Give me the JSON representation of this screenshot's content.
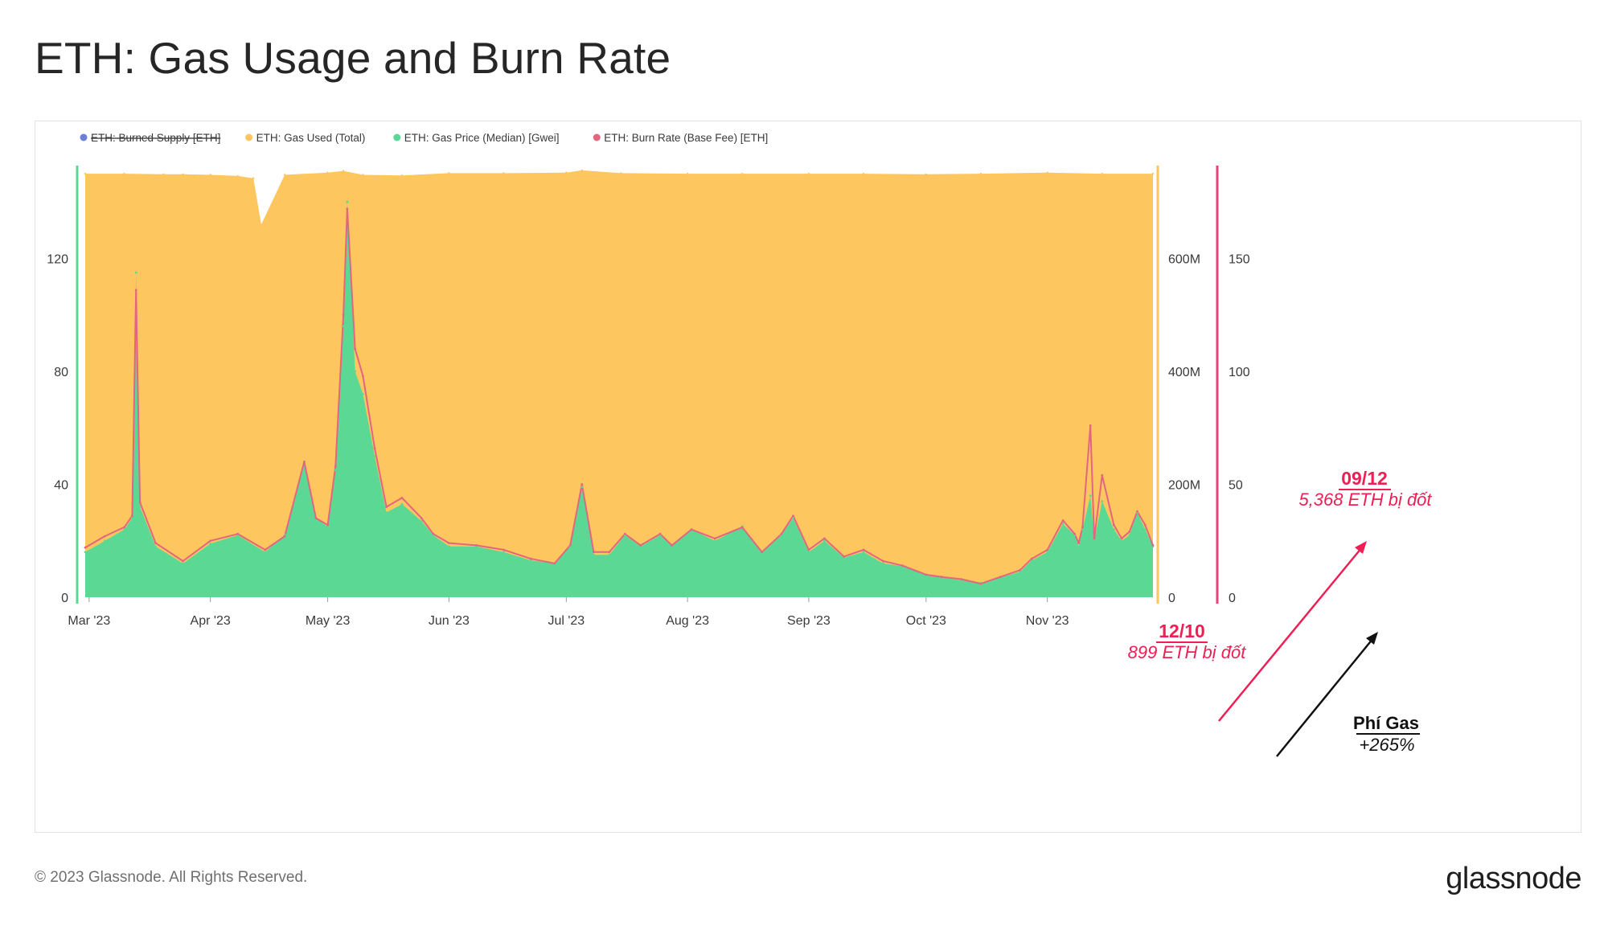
{
  "title": "ETH: Gas Usage and Burn Rate",
  "footer": {
    "copyright": "© 2023 Glassnode. All Rights Reserved.",
    "logo": "glassnode"
  },
  "colors": {
    "gas_used": "#FEC65E",
    "gas_price": "#5BD894",
    "burn_rate": "#E36680",
    "burned_supply": "#6B7FD7",
    "annotation_red": "#EF1F55",
    "annotation_black": "#111111",
    "left_axis_line": "#5BD894",
    "right_axis_line_1": "#FEC65E",
    "right_axis_line_2": "#E8437A"
  },
  "chart_data": {
    "type": "area",
    "legend": [
      {
        "name": "ETH: Burned Supply [ETH]",
        "color": "#6B7FD7",
        "hidden": true
      },
      {
        "name": "ETH: Gas Used (Total)",
        "color": "#FEC65E",
        "hidden": false
      },
      {
        "name": "ETH: Gas Price (Median) [Gwei]",
        "color": "#5BD894",
        "hidden": false
      },
      {
        "name": "ETH: Burn Rate (Base Fee) [ETH]",
        "color": "#E36680",
        "hidden": false
      }
    ],
    "legend_position": "top-left",
    "grid": false,
    "x_range": [
      "2023-02-28",
      "2023-11-28"
    ],
    "x_ticks": [
      {
        "date": "2023-03-01",
        "label": "Mar '23"
      },
      {
        "date": "2023-04-01",
        "label": "Apr '23"
      },
      {
        "date": "2023-05-01",
        "label": "May '23"
      },
      {
        "date": "2023-06-01",
        "label": "Jun '23"
      },
      {
        "date": "2023-07-01",
        "label": "Jul '23"
      },
      {
        "date": "2023-08-01",
        "label": "Aug '23"
      },
      {
        "date": "2023-09-01",
        "label": "Sep '23"
      },
      {
        "date": "2023-10-01",
        "label": "Oct '23"
      },
      {
        "date": "2023-11-01",
        "label": "Nov '23"
      }
    ],
    "axes": {
      "left": {
        "series": "ETH: Gas Price (Median) [Gwei]",
        "range": [
          0,
          160
        ],
        "ticks": [
          {
            "value": 0,
            "label": "0"
          },
          {
            "value": 40,
            "label": "40"
          },
          {
            "value": 80,
            "label": "80"
          },
          {
            "value": 120,
            "label": "120"
          }
        ]
      },
      "right1": {
        "series": "ETH: Gas Used (Total)",
        "range": [
          0,
          800000000
        ],
        "ticks": [
          {
            "value": 0,
            "label": "0"
          },
          {
            "value": 200000000,
            "label": "200M"
          },
          {
            "value": 400000000,
            "label": "400M"
          },
          {
            "value": 600000000,
            "label": "600M"
          }
        ]
      },
      "right2": {
        "series": "ETH: Burn Rate (Base Fee) [ETH]",
        "range": [
          0,
          200
        ],
        "ticks": [
          {
            "value": 0,
            "label": "0"
          },
          {
            "value": 50,
            "label": "50"
          },
          {
            "value": 100,
            "label": "100"
          },
          {
            "value": 150,
            "label": "150"
          }
        ]
      }
    },
    "series": [
      {
        "name": "ETH: Gas Used (Total)",
        "axis": "right1",
        "x": [
          "2023-02-28",
          "2023-03-10",
          "2023-03-20",
          "2023-03-25",
          "2023-04-01",
          "2023-04-08",
          "2023-04-12",
          "2023-04-14",
          "2023-04-20",
          "2023-05-01",
          "2023-05-05",
          "2023-05-10",
          "2023-05-20",
          "2023-06-01",
          "2023-06-15",
          "2023-07-01",
          "2023-07-05",
          "2023-07-15",
          "2023-08-01",
          "2023-08-15",
          "2023-09-01",
          "2023-09-15",
          "2023-10-01",
          "2023-10-15",
          "2023-11-01",
          "2023-11-15",
          "2023-11-28"
        ],
        "values": [
          750000000,
          750000000,
          749000000,
          749000000,
          748000000,
          746000000,
          742000000,
          660000000,
          748000000,
          752000000,
          755000000,
          748000000,
          747000000,
          751000000,
          751000000,
          752000000,
          756000000,
          751000000,
          750000000,
          750000000,
          750000000,
          750000000,
          749000000,
          750000000,
          752000000,
          750000000,
          750000000
        ]
      },
      {
        "name": "ETH: Gas Price (Median) [Gwei]",
        "axis": "left",
        "x": [
          "2023-02-28",
          "2023-03-05",
          "2023-03-10",
          "2023-03-12",
          "2023-03-13",
          "2023-03-14",
          "2023-03-18",
          "2023-03-25",
          "2023-04-01",
          "2023-04-08",
          "2023-04-15",
          "2023-04-20",
          "2023-04-25",
          "2023-04-28",
          "2023-05-01",
          "2023-05-03",
          "2023-05-05",
          "2023-05-06",
          "2023-05-08",
          "2023-05-10",
          "2023-05-13",
          "2023-05-16",
          "2023-05-20",
          "2023-05-25",
          "2023-05-28",
          "2023-06-01",
          "2023-06-08",
          "2023-06-15",
          "2023-06-22",
          "2023-06-28",
          "2023-07-02",
          "2023-07-05",
          "2023-07-08",
          "2023-07-12",
          "2023-07-16",
          "2023-07-20",
          "2023-07-25",
          "2023-07-28",
          "2023-08-02",
          "2023-08-08",
          "2023-08-15",
          "2023-08-20",
          "2023-08-25",
          "2023-08-28",
          "2023-09-01",
          "2023-09-05",
          "2023-09-10",
          "2023-09-15",
          "2023-09-20",
          "2023-09-25",
          "2023-10-01",
          "2023-10-05",
          "2023-10-10",
          "2023-10-15",
          "2023-10-20",
          "2023-10-25",
          "2023-10-28",
          "2023-11-01",
          "2023-11-05",
          "2023-11-08",
          "2023-11-09",
          "2023-11-10",
          "2023-11-12",
          "2023-11-13",
          "2023-11-15",
          "2023-11-18",
          "2023-11-20",
          "2023-11-22",
          "2023-11-24",
          "2023-11-26",
          "2023-11-28"
        ],
        "values": [
          16,
          20,
          24,
          28,
          115,
          32,
          18,
          12,
          19,
          22,
          16,
          22,
          48,
          28,
          25,
          45,
          96,
          140,
          80,
          72,
          50,
          30,
          33,
          27,
          22,
          18,
          18,
          16,
          13,
          12,
          18,
          39,
          15,
          15,
          22,
          18,
          22,
          18,
          24,
          20,
          25,
          16,
          22,
          28,
          16,
          20,
          14,
          16,
          12,
          11,
          8,
          7,
          6,
          5,
          7,
          9,
          13,
          16,
          26,
          22,
          18,
          24,
          36,
          20,
          34,
          24,
          20,
          22,
          30,
          24,
          18
        ]
      },
      {
        "name": "ETH: Burn Rate (Base Fee) [ETH]",
        "axis": "right2",
        "x": [
          "2023-02-28",
          "2023-03-05",
          "2023-03-10",
          "2023-03-12",
          "2023-03-13",
          "2023-03-14",
          "2023-03-18",
          "2023-03-25",
          "2023-04-01",
          "2023-04-08",
          "2023-04-15",
          "2023-04-20",
          "2023-04-25",
          "2023-04-28",
          "2023-05-01",
          "2023-05-03",
          "2023-05-05",
          "2023-05-06",
          "2023-05-08",
          "2023-05-10",
          "2023-05-13",
          "2023-05-16",
          "2023-05-20",
          "2023-05-25",
          "2023-05-28",
          "2023-06-01",
          "2023-06-08",
          "2023-06-15",
          "2023-06-22",
          "2023-06-28",
          "2023-07-02",
          "2023-07-05",
          "2023-07-08",
          "2023-07-12",
          "2023-07-16",
          "2023-07-20",
          "2023-07-25",
          "2023-07-28",
          "2023-08-02",
          "2023-08-08",
          "2023-08-15",
          "2023-08-20",
          "2023-08-25",
          "2023-08-28",
          "2023-09-01",
          "2023-09-05",
          "2023-09-10",
          "2023-09-15",
          "2023-09-20",
          "2023-09-25",
          "2023-10-01",
          "2023-10-05",
          "2023-10-10",
          "2023-10-15",
          "2023-10-20",
          "2023-10-25",
          "2023-10-28",
          "2023-11-01",
          "2023-11-05",
          "2023-11-08",
          "2023-11-09",
          "2023-11-10",
          "2023-11-12",
          "2023-11-13",
          "2023-11-15",
          "2023-11-18",
          "2023-11-20",
          "2023-11-22",
          "2023-11-24",
          "2023-11-26",
          "2023-11-28"
        ],
        "values": [
          22,
          27,
          31,
          36,
          136,
          42,
          24,
          16,
          25,
          28,
          21,
          27,
          60,
          35,
          32,
          58,
          125,
          172,
          110,
          98,
          66,
          40,
          44,
          35,
          28,
          24,
          23,
          21,
          17,
          15,
          23,
          50,
          20,
          20,
          28,
          23,
          28,
          23,
          30,
          26,
          31,
          20,
          28,
          36,
          21,
          26,
          18,
          21,
          16,
          14,
          10,
          9,
          8,
          6,
          9,
          12,
          17,
          21,
          34,
          28,
          24,
          31,
          76,
          26,
          54,
          32,
          26,
          29,
          38,
          32,
          23
        ]
      }
    ],
    "annotations": [
      {
        "date_label": "12/10",
        "text": "899 ETH bị đốt",
        "color": "#EF1F55"
      },
      {
        "date_label": "09/12",
        "text": "5,368 ETH bị đốt",
        "color": "#EF1F55"
      },
      {
        "date_label": "Phí Gas",
        "text": "+265%",
        "color": "#111111"
      }
    ]
  }
}
